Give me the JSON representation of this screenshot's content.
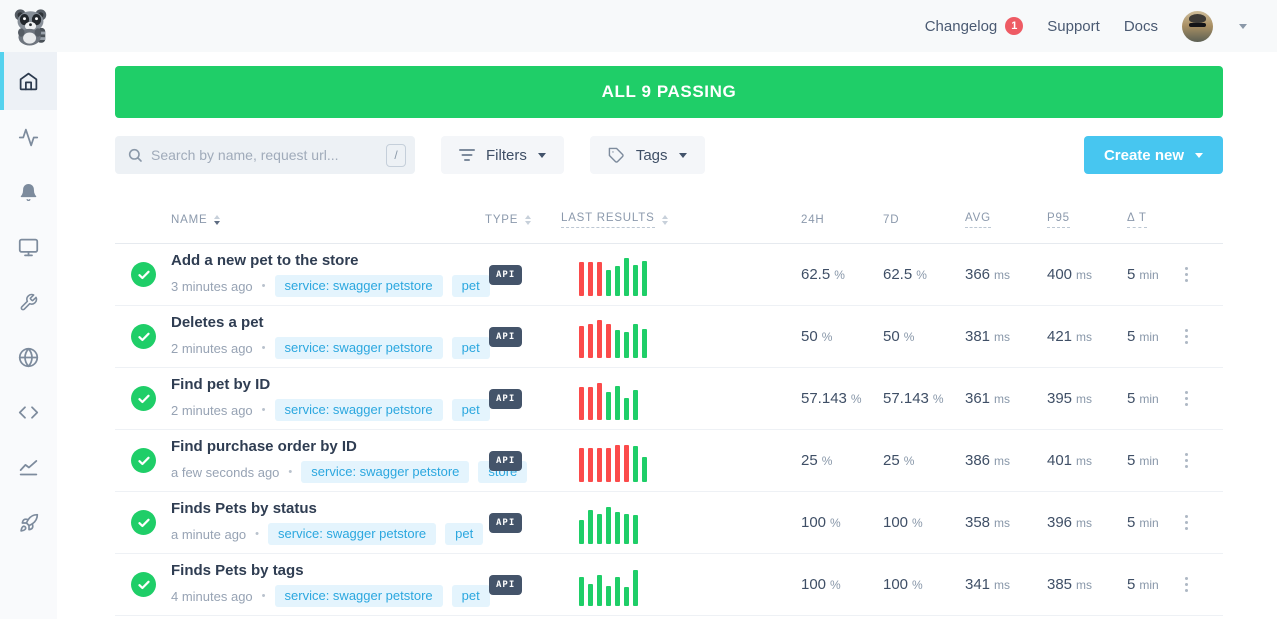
{
  "navbar": {
    "links": [
      {
        "label": "Changelog",
        "badge": "1"
      },
      {
        "label": "Support"
      },
      {
        "label": "Docs"
      }
    ]
  },
  "banner": {
    "text": "ALL 9 PASSING"
  },
  "toolbar": {
    "search_placeholder": "Search by name, request url...",
    "search_shortcut": "/",
    "filters_label": "Filters",
    "tags_label": "Tags",
    "create_new_label": "Create new"
  },
  "sidebar": {
    "items": [
      {
        "icon": "home-icon",
        "active": true
      },
      {
        "icon": "activity-icon",
        "active": false
      },
      {
        "icon": "alerts-bell-icon",
        "active": false
      },
      {
        "icon": "dashboards-monitor-icon",
        "active": false
      },
      {
        "icon": "maintenance-wrench-icon",
        "active": false
      },
      {
        "icon": "private-locations-globe-icon",
        "active": false
      },
      {
        "icon": "snippets-code-icon",
        "active": false
      },
      {
        "icon": "analytics-chart-icon",
        "active": false
      },
      {
        "icon": "quickstart-rocket-icon",
        "active": false
      }
    ]
  },
  "ui": {
    "separator": "•"
  },
  "table": {
    "headers": {
      "name": "NAME",
      "type": "TYPE",
      "last_results": "LAST RESULTS",
      "h24": "24H",
      "d7": "7D",
      "avg": "AVG",
      "p95": "P95",
      "delta_t": "Δ T"
    },
    "rows": [
      {
        "name": "Add a new pet to the store",
        "time_ago": "3 minutes ago",
        "tags": [
          "service: swagger petstore",
          "pet"
        ],
        "type": "API",
        "bars": [
          {
            "h": 34,
            "s": "fail"
          },
          {
            "h": 34,
            "s": "fail"
          },
          {
            "h": 34,
            "s": "fail"
          },
          {
            "h": 26,
            "s": "pass"
          },
          {
            "h": 30,
            "s": "pass"
          },
          {
            "h": 38,
            "s": "pass"
          },
          {
            "h": 31,
            "s": "pass"
          },
          {
            "h": 35,
            "s": "pass"
          }
        ],
        "stats": {
          "h24": {
            "value": "62.5",
            "unit": "%"
          },
          "d7": {
            "value": "62.5",
            "unit": "%"
          },
          "avg": {
            "value": "366",
            "unit": "ms"
          },
          "p95": {
            "value": "400",
            "unit": "ms"
          },
          "dt": {
            "value": "5",
            "unit": "min"
          }
        }
      },
      {
        "name": "Deletes a pet",
        "time_ago": "2 minutes ago",
        "tags": [
          "service: swagger petstore",
          "pet"
        ],
        "type": "API",
        "bars": [
          {
            "h": 32,
            "s": "fail"
          },
          {
            "h": 34,
            "s": "fail"
          },
          {
            "h": 38,
            "s": "fail"
          },
          {
            "h": 34,
            "s": "fail"
          },
          {
            "h": 28,
            "s": "pass"
          },
          {
            "h": 26,
            "s": "pass"
          },
          {
            "h": 34,
            "s": "pass"
          },
          {
            "h": 29,
            "s": "pass"
          }
        ],
        "stats": {
          "h24": {
            "value": "50",
            "unit": "%"
          },
          "d7": {
            "value": "50",
            "unit": "%"
          },
          "avg": {
            "value": "381",
            "unit": "ms"
          },
          "p95": {
            "value": "421",
            "unit": "ms"
          },
          "dt": {
            "value": "5",
            "unit": "min"
          }
        }
      },
      {
        "name": "Find pet by ID",
        "time_ago": "2 minutes ago",
        "tags": [
          "service: swagger petstore",
          "pet"
        ],
        "type": "API",
        "bars": [
          {
            "h": 33,
            "s": "fail"
          },
          {
            "h": 33,
            "s": "fail"
          },
          {
            "h": 37,
            "s": "fail"
          },
          {
            "h": 28,
            "s": "pass"
          },
          {
            "h": 34,
            "s": "pass"
          },
          {
            "h": 22,
            "s": "pass"
          },
          {
            "h": 30,
            "s": "pass"
          }
        ],
        "stats": {
          "h24": {
            "value": "57.143",
            "unit": "%"
          },
          "d7": {
            "value": "57.143",
            "unit": "%"
          },
          "avg": {
            "value": "361",
            "unit": "ms"
          },
          "p95": {
            "value": "395",
            "unit": "ms"
          },
          "dt": {
            "value": "5",
            "unit": "min"
          }
        }
      },
      {
        "name": "Find purchase order by ID",
        "time_ago": "a few seconds ago",
        "tags": [
          "service: swagger petstore",
          "store"
        ],
        "type": "API",
        "bars": [
          {
            "h": 34,
            "s": "fail"
          },
          {
            "h": 34,
            "s": "fail"
          },
          {
            "h": 34,
            "s": "fail"
          },
          {
            "h": 34,
            "s": "fail"
          },
          {
            "h": 37,
            "s": "fail"
          },
          {
            "h": 37,
            "s": "fail"
          },
          {
            "h": 36,
            "s": "pass"
          },
          {
            "h": 25,
            "s": "pass"
          }
        ],
        "stats": {
          "h24": {
            "value": "25",
            "unit": "%"
          },
          "d7": {
            "value": "25",
            "unit": "%"
          },
          "avg": {
            "value": "386",
            "unit": "ms"
          },
          "p95": {
            "value": "401",
            "unit": "ms"
          },
          "dt": {
            "value": "5",
            "unit": "min"
          }
        }
      },
      {
        "name": "Finds Pets by status",
        "time_ago": "a minute ago",
        "tags": [
          "service: swagger petstore",
          "pet"
        ],
        "type": "API",
        "bars": [
          {
            "h": 24,
            "s": "pass"
          },
          {
            "h": 34,
            "s": "pass"
          },
          {
            "h": 30,
            "s": "pass"
          },
          {
            "h": 37,
            "s": "pass"
          },
          {
            "h": 32,
            "s": "pass"
          },
          {
            "h": 30,
            "s": "pass"
          },
          {
            "h": 29,
            "s": "pass"
          }
        ],
        "stats": {
          "h24": {
            "value": "100",
            "unit": "%"
          },
          "d7": {
            "value": "100",
            "unit": "%"
          },
          "avg": {
            "value": "358",
            "unit": "ms"
          },
          "p95": {
            "value": "396",
            "unit": "ms"
          },
          "dt": {
            "value": "5",
            "unit": "min"
          }
        }
      },
      {
        "name": "Finds Pets by tags",
        "time_ago": "4 minutes ago",
        "tags": [
          "service: swagger petstore",
          "pet"
        ],
        "type": "API",
        "bars": [
          {
            "h": 29,
            "s": "pass"
          },
          {
            "h": 22,
            "s": "pass"
          },
          {
            "h": 31,
            "s": "pass"
          },
          {
            "h": 20,
            "s": "pass"
          },
          {
            "h": 29,
            "s": "pass"
          },
          {
            "h": 19,
            "s": "pass"
          },
          {
            "h": 36,
            "s": "pass"
          }
        ],
        "stats": {
          "h24": {
            "value": "100",
            "unit": "%"
          },
          "d7": {
            "value": "100",
            "unit": "%"
          },
          "avg": {
            "value": "341",
            "unit": "ms"
          },
          "p95": {
            "value": "385",
            "unit": "ms"
          },
          "dt": {
            "value": "5",
            "unit": "min"
          }
        }
      }
    ]
  },
  "colors": {
    "pass_green": "#1fce68",
    "fail_red": "#fb4b4b",
    "create_button_blue": "#47c6f0",
    "tag_text_blue": "#2ba7df",
    "tag_bg_blue": "#e4f4fd",
    "badge_red": "#ee5b64",
    "api_badge_slate": "#44546a",
    "sidebar_active_cyan": "#55d2ee"
  }
}
